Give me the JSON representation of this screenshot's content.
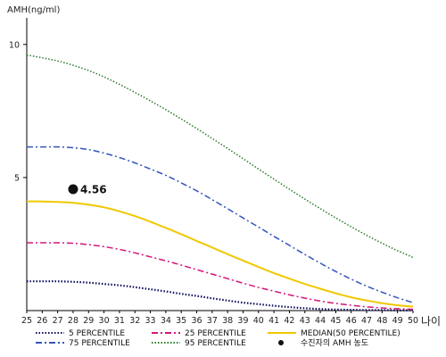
{
  "chart_data": {
    "type": "line",
    "ylabel": "AMH(ng/ml)",
    "xlabel": "나이",
    "ylim": [
      0,
      11
    ],
    "xlim": [
      25,
      50
    ],
    "yticks": [
      5,
      10
    ],
    "x": [
      25,
      26,
      27,
      28,
      29,
      30,
      31,
      32,
      33,
      34,
      35,
      36,
      37,
      38,
      39,
      40,
      41,
      42,
      43,
      44,
      45,
      46,
      47,
      48,
      49,
      50
    ],
    "series": [
      {
        "name": "5 PERCENTILE",
        "color": "#0a0a5c",
        "dash": "1.5,2",
        "width": 2.2,
        "values": [
          1.1,
          1.1,
          1.1,
          1.08,
          1.05,
          1.0,
          0.95,
          0.88,
          0.8,
          0.72,
          0.63,
          0.55,
          0.46,
          0.38,
          0.3,
          0.24,
          0.18,
          0.13,
          0.09,
          0.06,
          0.04,
          0.03,
          0.02,
          0.02,
          0.01,
          0.01
        ]
      },
      {
        "name": "25 PERCENTILE",
        "color": "#d4147a",
        "dash": "7,3,2,3",
        "width": 1.5,
        "values": [
          2.55,
          2.55,
          2.55,
          2.53,
          2.48,
          2.4,
          2.3,
          2.17,
          2.02,
          1.87,
          1.71,
          1.54,
          1.37,
          1.2,
          1.03,
          0.87,
          0.73,
          0.59,
          0.47,
          0.36,
          0.27,
          0.2,
          0.14,
          0.1,
          0.07,
          0.05
        ]
      },
      {
        "name": "MEDIAN(50 PERCENTILE)",
        "color": "#f0c800",
        "dash": "",
        "width": 2,
        "values": [
          4.1,
          4.1,
          4.08,
          4.05,
          3.98,
          3.88,
          3.73,
          3.55,
          3.34,
          3.11,
          2.87,
          2.62,
          2.37,
          2.12,
          1.88,
          1.64,
          1.41,
          1.2,
          1.0,
          0.82,
          0.65,
          0.5,
          0.38,
          0.28,
          0.2,
          0.15
        ]
      },
      {
        "name": "75 PERCENTILE",
        "color": "#3355bb",
        "dash": "7,3,2,3",
        "width": 1.5,
        "values": [
          6.15,
          6.15,
          6.15,
          6.12,
          6.05,
          5.92,
          5.75,
          5.55,
          5.32,
          5.08,
          4.8,
          4.5,
          4.17,
          3.83,
          3.48,
          3.14,
          2.79,
          2.45,
          2.11,
          1.78,
          1.47,
          1.18,
          0.92,
          0.69,
          0.48,
          0.3
        ]
      },
      {
        "name": "95 PERCENTILE",
        "color": "#2a7a2a",
        "dash": "1.5,2",
        "width": 1.5,
        "values": [
          9.6,
          9.5,
          9.38,
          9.22,
          9.02,
          8.78,
          8.5,
          8.2,
          7.88,
          7.55,
          7.2,
          6.84,
          6.47,
          6.09,
          5.71,
          5.32,
          4.94,
          4.56,
          4.19,
          3.83,
          3.48,
          3.15,
          2.83,
          2.53,
          2.25,
          2.0
        ]
      }
    ],
    "marker": {
      "name": "수진자의 AMH 농도",
      "x": 28,
      "y": 4.56,
      "label": "4.56",
      "color": "#111111"
    },
    "legend": [
      {
        "name": "5 PERCENTILE",
        "color": "#0a0a5c",
        "dash": "1.5,2",
        "kind": "line"
      },
      {
        "name": "25 PERCENTILE",
        "color": "#d4147a",
        "dash": "7,3,2,3",
        "kind": "line"
      },
      {
        "name": "MEDIAN(50 PERCENTILE)",
        "color": "#f0c800",
        "dash": "",
        "kind": "line"
      },
      {
        "name": "75 PERCENTILE",
        "color": "#3355bb",
        "dash": "7,3,2,3",
        "kind": "line"
      },
      {
        "name": "95 PERCENTILE",
        "color": "#2a7a2a",
        "dash": "1.5,2",
        "kind": "line"
      },
      {
        "name": "수진자의 AMH 농도",
        "color": "#111111",
        "dash": "",
        "kind": "dot"
      }
    ],
    "legend_placement": "bottom",
    "grid": false
  }
}
